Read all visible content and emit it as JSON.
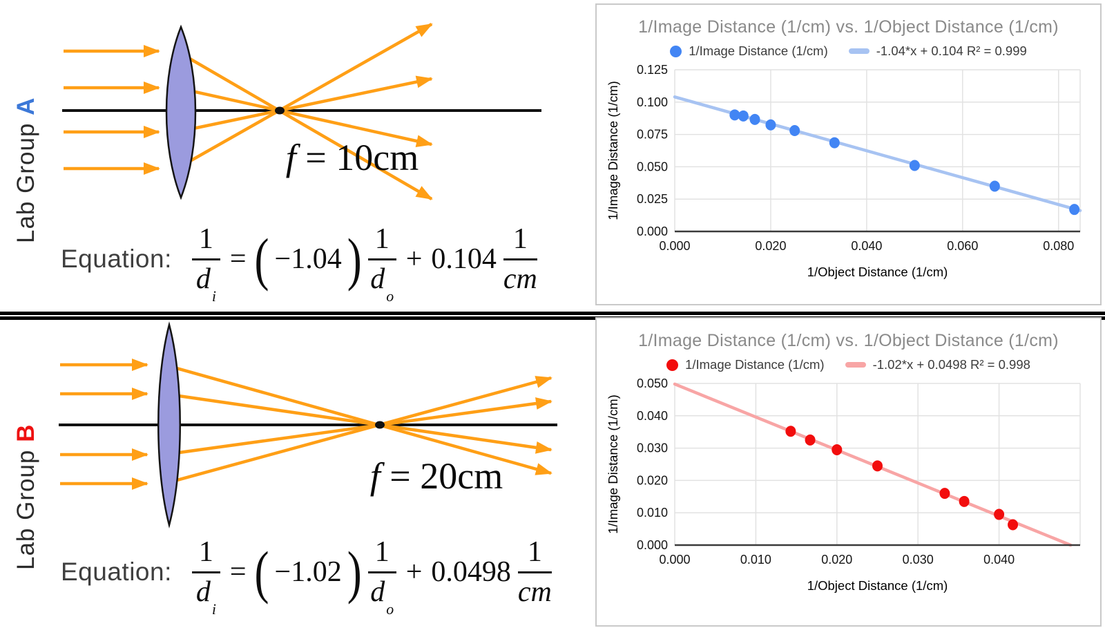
{
  "colors": {
    "ray_orange": "#ff9f16",
    "lens_fill": "#9b9bde",
    "lens_stroke": "#141414",
    "axis_black": "#111111",
    "group_a_letter": "#3c78d8",
    "group_b_letter": "#ee1111"
  },
  "groups": [
    {
      "label_prefix": "Lab Group ",
      "label_letter": "A",
      "focal_f": "f",
      "focal_rest": " = 10cm",
      "equation": {
        "label": "Equation:",
        "lhs_num": "1",
        "lhs_den_var": "d",
        "lhs_den_sub": "i",
        "equals": "=",
        "paren_open": "(",
        "slope": "−1.04",
        "paren_close": ")",
        "rhs_num": "1",
        "rhs_den_var": "d",
        "rhs_den_sub": "o",
        "plus": "+",
        "intercept": "0.104",
        "unit_num": "1",
        "unit_den": "cm"
      }
    },
    {
      "label_prefix": "Lab Group ",
      "label_letter": "B",
      "focal_f": "f",
      "focal_rest": " = 20cm",
      "equation": {
        "label": "Equation:",
        "lhs_num": "1",
        "lhs_den_var": "d",
        "lhs_den_sub": "i",
        "equals": "=",
        "paren_open": "(",
        "slope": "−1.02",
        "paren_close": ")",
        "rhs_num": "1",
        "rhs_den_var": "d",
        "rhs_den_sub": "o",
        "plus": "+",
        "intercept": "0.0498",
        "unit_num": "1",
        "unit_den": "cm"
      }
    }
  ],
  "chart_data": [
    {
      "type": "scatter",
      "title": "1/Image Distance (1/cm) vs. 1/Object Distance (1/cm)",
      "xlabel": "1/Object Distance (1/cm)",
      "ylabel": "1/Image Distance (1/cm)",
      "series_label": "1/Image Distance (1/cm)",
      "point_color": "#4285f4",
      "xlim": [
        0,
        0.0845
      ],
      "ylim": [
        0,
        0.125
      ],
      "xtick_values": [
        0,
        0.02,
        0.04,
        0.06,
        0.08
      ],
      "xtick_labels": [
        "0.000",
        "0.020",
        "0.040",
        "0.060",
        "0.080"
      ],
      "ytick_values": [
        0,
        0.025,
        0.05,
        0.075,
        0.1,
        0.125
      ],
      "ytick_labels": [
        "0.000",
        "0.025",
        "0.050",
        "0.075",
        "0.100",
        "0.125"
      ],
      "grid": true,
      "legend_position": "top",
      "points": [
        [
          0.0125,
          0.0901
        ],
        [
          0.0143,
          0.0893
        ],
        [
          0.0167,
          0.0866
        ],
        [
          0.02,
          0.0824
        ],
        [
          0.025,
          0.078
        ],
        [
          0.0333,
          0.0686
        ],
        [
          0.05,
          0.051
        ],
        [
          0.0667,
          0.035
        ],
        [
          0.0833,
          0.017
        ]
      ],
      "trend": {
        "label": "-1.04*x + 0.104 R² = 0.999",
        "slope": -1.04,
        "intercept": 0.104,
        "color": "#a7c3f2"
      }
    },
    {
      "type": "scatter",
      "title": "1/Image Distance (1/cm) vs. 1/Object Distance (1/cm)",
      "xlabel": "1/Object Distance (1/cm)",
      "ylabel": "1/Image Distance (1/cm)",
      "series_label": "1/Image Distance (1/cm)",
      "point_color": "#f20d0d",
      "xlim": [
        0,
        0.05
      ],
      "ylim": [
        0,
        0.05
      ],
      "xtick_values": [
        0,
        0.01,
        0.02,
        0.03,
        0.04
      ],
      "xtick_labels": [
        "0.000",
        "0.010",
        "0.020",
        "0.030",
        "0.040"
      ],
      "ytick_values": [
        0,
        0.01,
        0.02,
        0.03,
        0.04,
        0.05
      ],
      "ytick_labels": [
        "0.000",
        "0.010",
        "0.020",
        "0.030",
        "0.040",
        "0.050"
      ],
      "grid": true,
      "legend_position": "top",
      "points": [
        [
          0.0143,
          0.0352
        ],
        [
          0.0167,
          0.0325
        ],
        [
          0.02,
          0.0295
        ],
        [
          0.025,
          0.0245
        ],
        [
          0.0333,
          0.016
        ],
        [
          0.0357,
          0.0135
        ],
        [
          0.04,
          0.0095
        ],
        [
          0.0417,
          0.0063
        ]
      ],
      "trend": {
        "label": "-1.02*x + 0.0498 R² = 0.998",
        "slope": -1.02,
        "intercept": 0.0498,
        "color": "#f8a5a5"
      }
    }
  ]
}
